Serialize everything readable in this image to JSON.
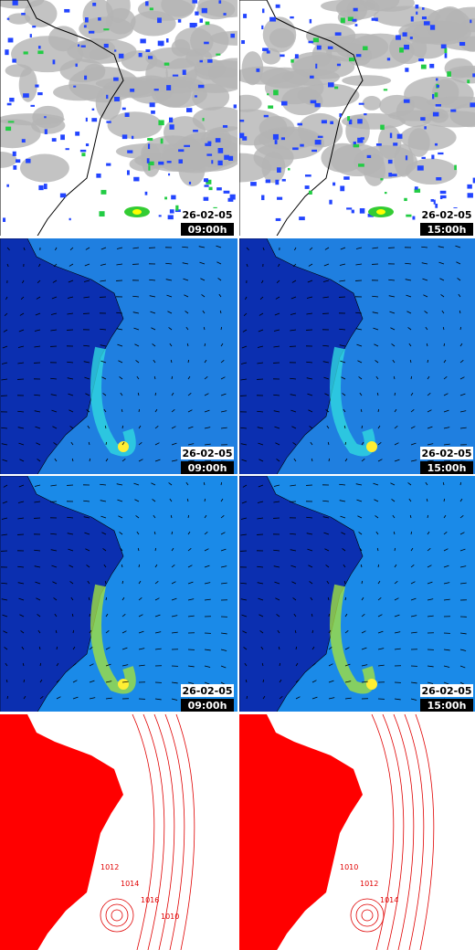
{
  "panels": [
    {
      "date": "26-02-05",
      "time": "09:00h"
    },
    {
      "date": "26-02-05",
      "time": "15:00h"
    },
    {
      "date": "26-02-05",
      "time": "09:00h"
    },
    {
      "date": "26-02-05",
      "time": "15:00h"
    },
    {
      "date": "26-02-05",
      "time": "09:00h"
    },
    {
      "date": "26-02-05",
      "time": "15:00h"
    }
  ],
  "pressure_maps": [
    {
      "contour_labels": [
        "1012",
        "1014",
        "1016",
        "1010"
      ]
    },
    {
      "contour_labels": [
        "1010",
        "1012",
        "1014"
      ]
    }
  ]
}
